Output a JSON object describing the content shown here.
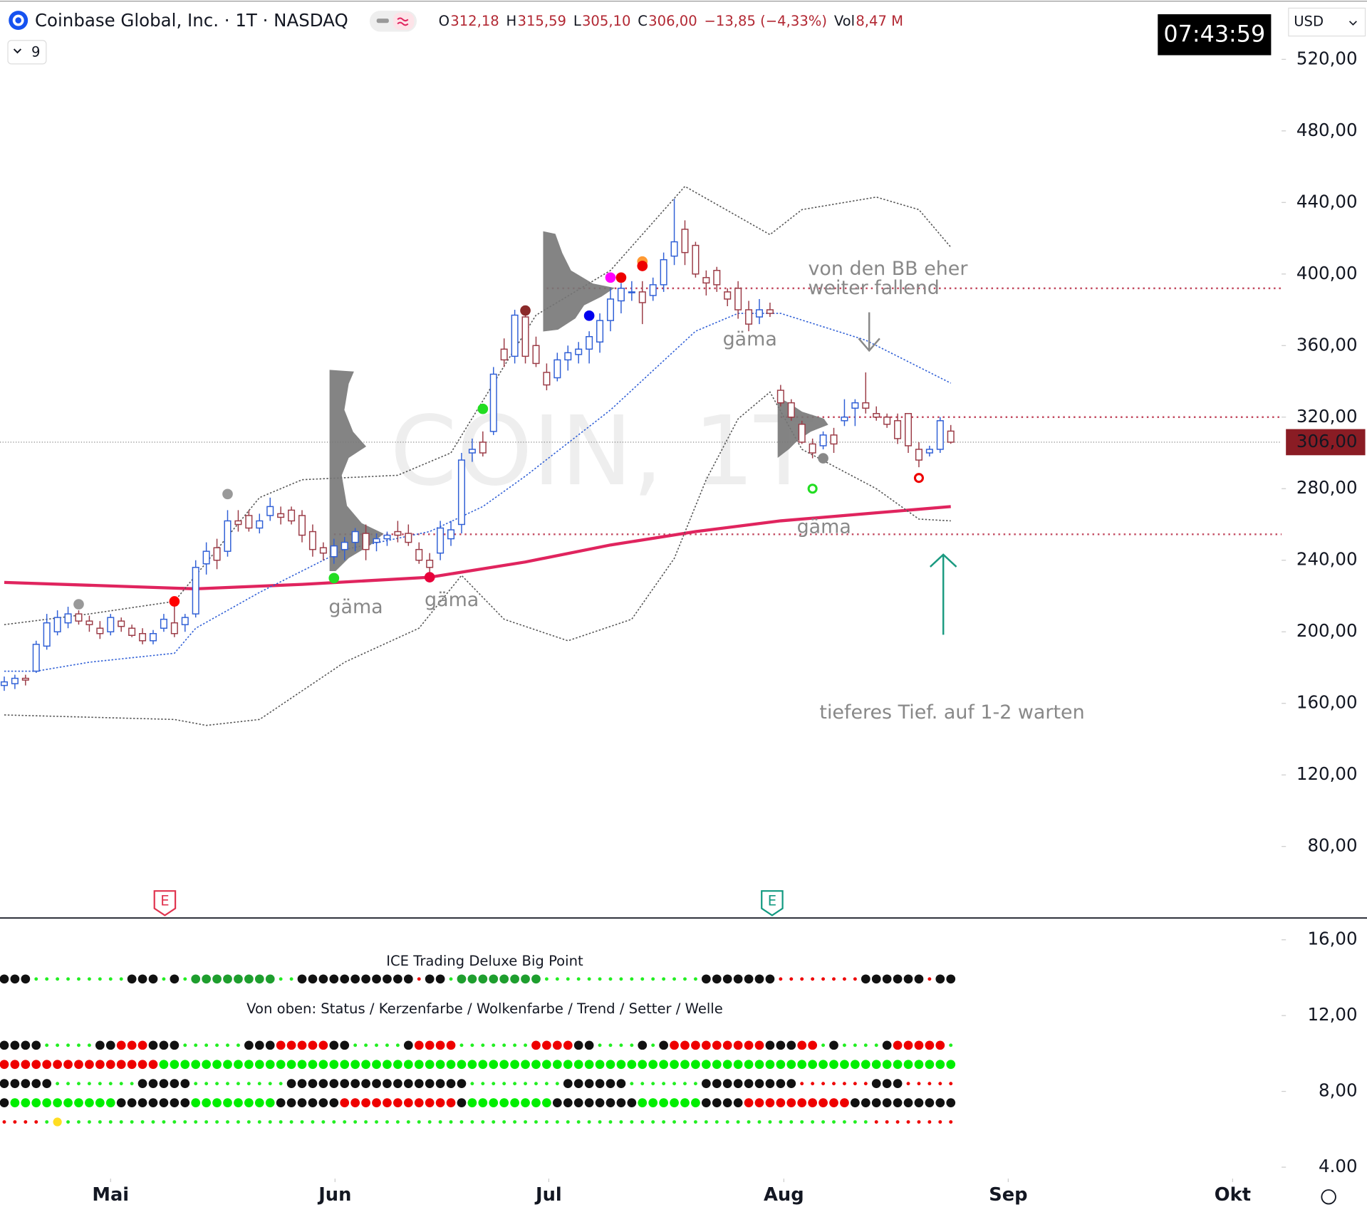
{
  "header": {
    "title": "Coinbase Global, Inc. · 1T · NASDAQ",
    "quote": [
      {
        "k": "O",
        "v": "312,18"
      },
      {
        "k": "H",
        "v": "315,59"
      },
      {
        "k": "L",
        "v": "305,10"
      },
      {
        "k": "C",
        "v": "306,00"
      },
      {
        "v": "−13,85 (−4,33%)"
      },
      {
        "k": "Vol",
        "v": "8,47 M"
      }
    ],
    "indicators_count": "9",
    "clock": "07:43:59",
    "currency": "USD"
  },
  "chart_data": [
    {
      "type": "candlestick",
      "watermark": "COIN, 1T",
      "up_color": "#2f5fd6",
      "down_color": "#9b3b46",
      "candles": [
        [
          170,
          175,
          167,
          172
        ],
        [
          171,
          176,
          168,
          174
        ],
        [
          174,
          176,
          170,
          173
        ],
        [
          178,
          195,
          177,
          193
        ],
        [
          192,
          210,
          190,
          205
        ],
        [
          200,
          212,
          198,
          208
        ],
        [
          205,
          214,
          202,
          210
        ],
        [
          210,
          212,
          204,
          206
        ],
        [
          206,
          209,
          200,
          204
        ],
        [
          202,
          206,
          196,
          199
        ],
        [
          200,
          210,
          198,
          208
        ],
        [
          206,
          208,
          200,
          203
        ],
        [
          202,
          204,
          197,
          198
        ],
        [
          199,
          202,
          193,
          195
        ],
        [
          195,
          201,
          193,
          199
        ],
        [
          202,
          210,
          200,
          207
        ],
        [
          205,
          218,
          197,
          199
        ],
        [
          204,
          210,
          200,
          208
        ],
        [
          210,
          240,
          208,
          236
        ],
        [
          238,
          250,
          232,
          245
        ],
        [
          247,
          252,
          235,
          240
        ],
        [
          245,
          268,
          242,
          262
        ],
        [
          262,
          268,
          256,
          260
        ],
        [
          265,
          268,
          256,
          258
        ],
        [
          258,
          266,
          255,
          262
        ],
        [
          265,
          275,
          262,
          270
        ],
        [
          266,
          270,
          260,
          264
        ],
        [
          268,
          270,
          260,
          262
        ],
        [
          265,
          268,
          250,
          254
        ],
        [
          256,
          260,
          242,
          246
        ],
        [
          247,
          250,
          240,
          244
        ],
        [
          242,
          252,
          238,
          248
        ],
        [
          246,
          253,
          240,
          250
        ],
        [
          250,
          258,
          245,
          256
        ],
        [
          255,
          260,
          240,
          246
        ],
        [
          250,
          255,
          245,
          252
        ],
        [
          252,
          256,
          248,
          254
        ],
        [
          256,
          262,
          250,
          254
        ],
        [
          255,
          260,
          248,
          250
        ],
        [
          246,
          250,
          238,
          240
        ],
        [
          240,
          244,
          232,
          236
        ],
        [
          244,
          262,
          240,
          258
        ],
        [
          252,
          262,
          248,
          257
        ],
        [
          260,
          300,
          255,
          296
        ],
        [
          300,
          308,
          295,
          302
        ],
        [
          306,
          312,
          298,
          300
        ],
        [
          312,
          348,
          310,
          344
        ],
        [
          358,
          364,
          348,
          352
        ],
        [
          354,
          380,
          350,
          377
        ],
        [
          376,
          382,
          350,
          354
        ],
        [
          360,
          365,
          348,
          350
        ],
        [
          345,
          350,
          335,
          338
        ],
        [
          342,
          356,
          340,
          352
        ],
        [
          352,
          360,
          346,
          356
        ],
        [
          355,
          362,
          350,
          358
        ],
        [
          358,
          368,
          350,
          365
        ],
        [
          362,
          378,
          356,
          374
        ],
        [
          374,
          392,
          368,
          386
        ],
        [
          385,
          395,
          378,
          392
        ],
        [
          390,
          396,
          385,
          390
        ],
        [
          390,
          396,
          372,
          384
        ],
        [
          388,
          398,
          385,
          394
        ],
        [
          394,
          412,
          390,
          408
        ],
        [
          410,
          442,
          405,
          418
        ],
        [
          425,
          430,
          405,
          412
        ],
        [
          416,
          418,
          398,
          400
        ],
        [
          398,
          402,
          388,
          395
        ],
        [
          402,
          404,
          390,
          394
        ],
        [
          390,
          392,
          382,
          386
        ],
        [
          392,
          396,
          375,
          380
        ],
        [
          380,
          385,
          368,
          372
        ],
        [
          376,
          386,
          372,
          380
        ],
        [
          380,
          384,
          376,
          378
        ],
        [
          335,
          338,
          326,
          328
        ],
        [
          328,
          330,
          318,
          320
        ],
        [
          316,
          318,
          305,
          306
        ],
        [
          305,
          308,
          297,
          300
        ],
        [
          304,
          312,
          302,
          310
        ],
        [
          310,
          314,
          300,
          305
        ],
        [
          318,
          330,
          315,
          320
        ],
        [
          325,
          330,
          315,
          328
        ],
        [
          328,
          345,
          322,
          325
        ],
        [
          322,
          326,
          318,
          320
        ],
        [
          320,
          322,
          314,
          316
        ],
        [
          318,
          322,
          305,
          308
        ],
        [
          322,
          322,
          300,
          304
        ],
        [
          302,
          306,
          292,
          296
        ],
        [
          300,
          304,
          298,
          302
        ],
        [
          302,
          320,
          300,
          318
        ],
        [
          312.18,
          315.59,
          305.1,
          306
        ]
      ],
      "xlim": [
        -0.4,
        120.1
      ],
      "xticks": [
        {
          "value": 10,
          "label": "Mai"
        },
        {
          "value": 31.1,
          "label": "Jun"
        },
        {
          "value": 51.2,
          "label": "Jul"
        },
        {
          "value": 73.3,
          "label": "Aug"
        },
        {
          "value": 94.4,
          "label": "Sep"
        },
        {
          "value": 115.5,
          "label": "Okt"
        }
      ],
      "ylim": [
        40.5,
        553
      ],
      "yticks": [
        {
          "value": 520,
          "label": "520,00"
        },
        {
          "value": 480,
          "label": "480,00"
        },
        {
          "value": 440,
          "label": "440,00"
        },
        {
          "value": 400,
          "label": "400,00"
        },
        {
          "value": 360,
          "label": "360,00"
        },
        {
          "value": 320,
          "label": "320,00"
        },
        {
          "value": 280,
          "label": "280,00"
        },
        {
          "value": 240,
          "label": "240,00"
        },
        {
          "value": 200,
          "label": "200,00"
        },
        {
          "value": 160,
          "label": "160,00"
        },
        {
          "value": 120,
          "label": "120,00"
        },
        {
          "value": 80,
          "label": "80,00"
        }
      ],
      "last_price": {
        "value": 306,
        "label": "306,00"
      },
      "last_price_color": "#8a1c24",
      "lines": [
        {
          "color": "#e0245e",
          "style": "thick",
          "x": [
            0,
            18,
            28,
            40,
            49,
            57,
            65,
            73,
            82,
            89
          ],
          "values": [
            227.6,
            224,
            226.5,
            230.5,
            239,
            248.5,
            256,
            262,
            266.5,
            270
          ]
        },
        {
          "color": "#2f5fd6",
          "style": "dotted",
          "x": [
            0,
            3,
            8,
            16,
            18,
            24,
            32,
            40,
            45,
            49,
            57,
            65,
            69,
            73,
            81,
            89
          ],
          "values": [
            178,
            178,
            183,
            188,
            202,
            222,
            246,
            256,
            270,
            287,
            324,
            368,
            378,
            378,
            363,
            339
          ]
        },
        {
          "color": "#555555",
          "style": "dotted",
          "x": [
            0,
            8,
            16,
            24,
            28,
            37,
            42,
            47,
            50,
            57,
            64,
            72,
            75,
            82,
            86,
            89
          ],
          "values": [
            204,
            210,
            217,
            275,
            285,
            287.5,
            300,
            348.5,
            377,
            402,
            449,
            422,
            436,
            443,
            436,
            415
          ]
        },
        {
          "color": "#555555",
          "style": "dotted",
          "x": [
            0,
            16,
            19,
            24,
            32,
            39,
            43,
            47,
            53,
            59,
            63,
            66,
            69,
            72,
            75,
            82,
            86,
            89
          ],
          "values": [
            153.5,
            151,
            147.7,
            151,
            183,
            202,
            231.5,
            207,
            195,
            207,
            241,
            285,
            319,
            334,
            302,
            280,
            263,
            262
          ]
        }
      ],
      "level_color": "#c2485e",
      "levels": [
        {
          "value": 392,
          "from": 51
        },
        {
          "value": 320,
          "from": 73
        },
        {
          "value": 254.5,
          "from": 31
        }
      ],
      "markers": [
        {
          "x": 7,
          "value": 215.4,
          "color": "#999999"
        },
        {
          "x": 21,
          "value": 277,
          "color": "#999999"
        },
        {
          "x": 16,
          "value": 217,
          "color": "#ff0000"
        },
        {
          "x": 31,
          "value": 230,
          "color": "#22dd22"
        },
        {
          "x": 40,
          "value": 230.5,
          "color": "#e8003a"
        },
        {
          "x": 45,
          "value": 324.6,
          "color": "#22dd22"
        },
        {
          "x": 49,
          "value": 379.6,
          "color": "#8b2a2a"
        },
        {
          "x": 55,
          "value": 376.7,
          "color": "#0000ee"
        },
        {
          "x": 57,
          "value": 398,
          "color": "#ff00ff"
        },
        {
          "x": 58,
          "value": 398,
          "color": "#ee0000"
        },
        {
          "x": 60,
          "value": 407,
          "color": "#ff9933"
        },
        {
          "x": 60,
          "value": 404.5,
          "color": "#ee0000"
        },
        {
          "x": 77,
          "value": 297,
          "color": "#888888"
        },
        {
          "x": 76,
          "value": 280,
          "color": "#22dd22",
          "hollow": true
        },
        {
          "x": 86,
          "value": 286,
          "color": "#ee0000",
          "hollow": true
        }
      ],
      "annotations": [
        "von den BB eher",
        "weiter fallend",
        "gäma",
        "gäma",
        "gäma",
        "gäma",
        "tieferes Tief. auf 1-2 warten"
      ],
      "events": [
        {
          "label": "E",
          "x": 15.1,
          "color": "#e0344f"
        },
        {
          "label": "E",
          "x": 72.2,
          "color": "#119980"
        }
      ]
    },
    {
      "type": "dot-matrix",
      "title": "ICE Trading Deluxe Big Point",
      "subtitle": "Von oben: Status / Kerzenfarbe / Wolkenfarbe / Trend / Setter / Welle",
      "ylim": [
        3.26,
        17.15
      ],
      "yticks": [
        {
          "value": 16,
          "label": "16,00"
        },
        {
          "value": 12,
          "label": "12,00"
        },
        {
          "value": 8,
          "label": "8,00"
        },
        {
          "value": 4,
          "label": "4.00"
        }
      ],
      "palette": {
        "K": "#111111",
        "g": "#22ee22",
        "G": "#00ee00",
        "D": "#1e9e2e",
        "R": "#ee0000",
        "r": "#ee0000",
        "Y": "#ffdd22"
      },
      "rows": [
        "KKKgggggggggKKKgKgDDDDDDDDggKKKKKKKKKKKrKKgDDDDDDDDgggggggggggggggKKKKKKKrrrrrrrrKKKKKKrKK",
        "KKKKgggggKKRRRKKKggggggKKKRRRRRKKgggggKRRRRgggggggRRRRKKggggKgKRRRRRRRRRKKKRRgKggggKRRRRRg",
        "RRRRRRRRRRRRRRRGGGGGGGGGGGGGGGGGGGGGGGGGGGGGGGGGGGGGGGGGGGGGGGGGGGGGGGGGGGGGGGGGGGGGGGGGGG",
        "KKKKKggggggggKKKKKgggggggggKKKKKKKKKKKKKKKKKgggggggggKKKKKKgggggggKKKKKKKKKrrrrrrrKKKrrrrr",
        "KGGGGGGGGGGKKKKKKKGGGGGGGGKKKKKKRRRRRRRRRRRKGGGGGGGGKKKKKKKKGGGGGGKKKKRRRRRRRRRRKKKKKKKKKK",
        "rrrrgYggggggggggggggggggggggggggggggggggggggggggggggggggggggggggggggggggggggggggggrrrrrrrr"
      ]
    }
  ]
}
